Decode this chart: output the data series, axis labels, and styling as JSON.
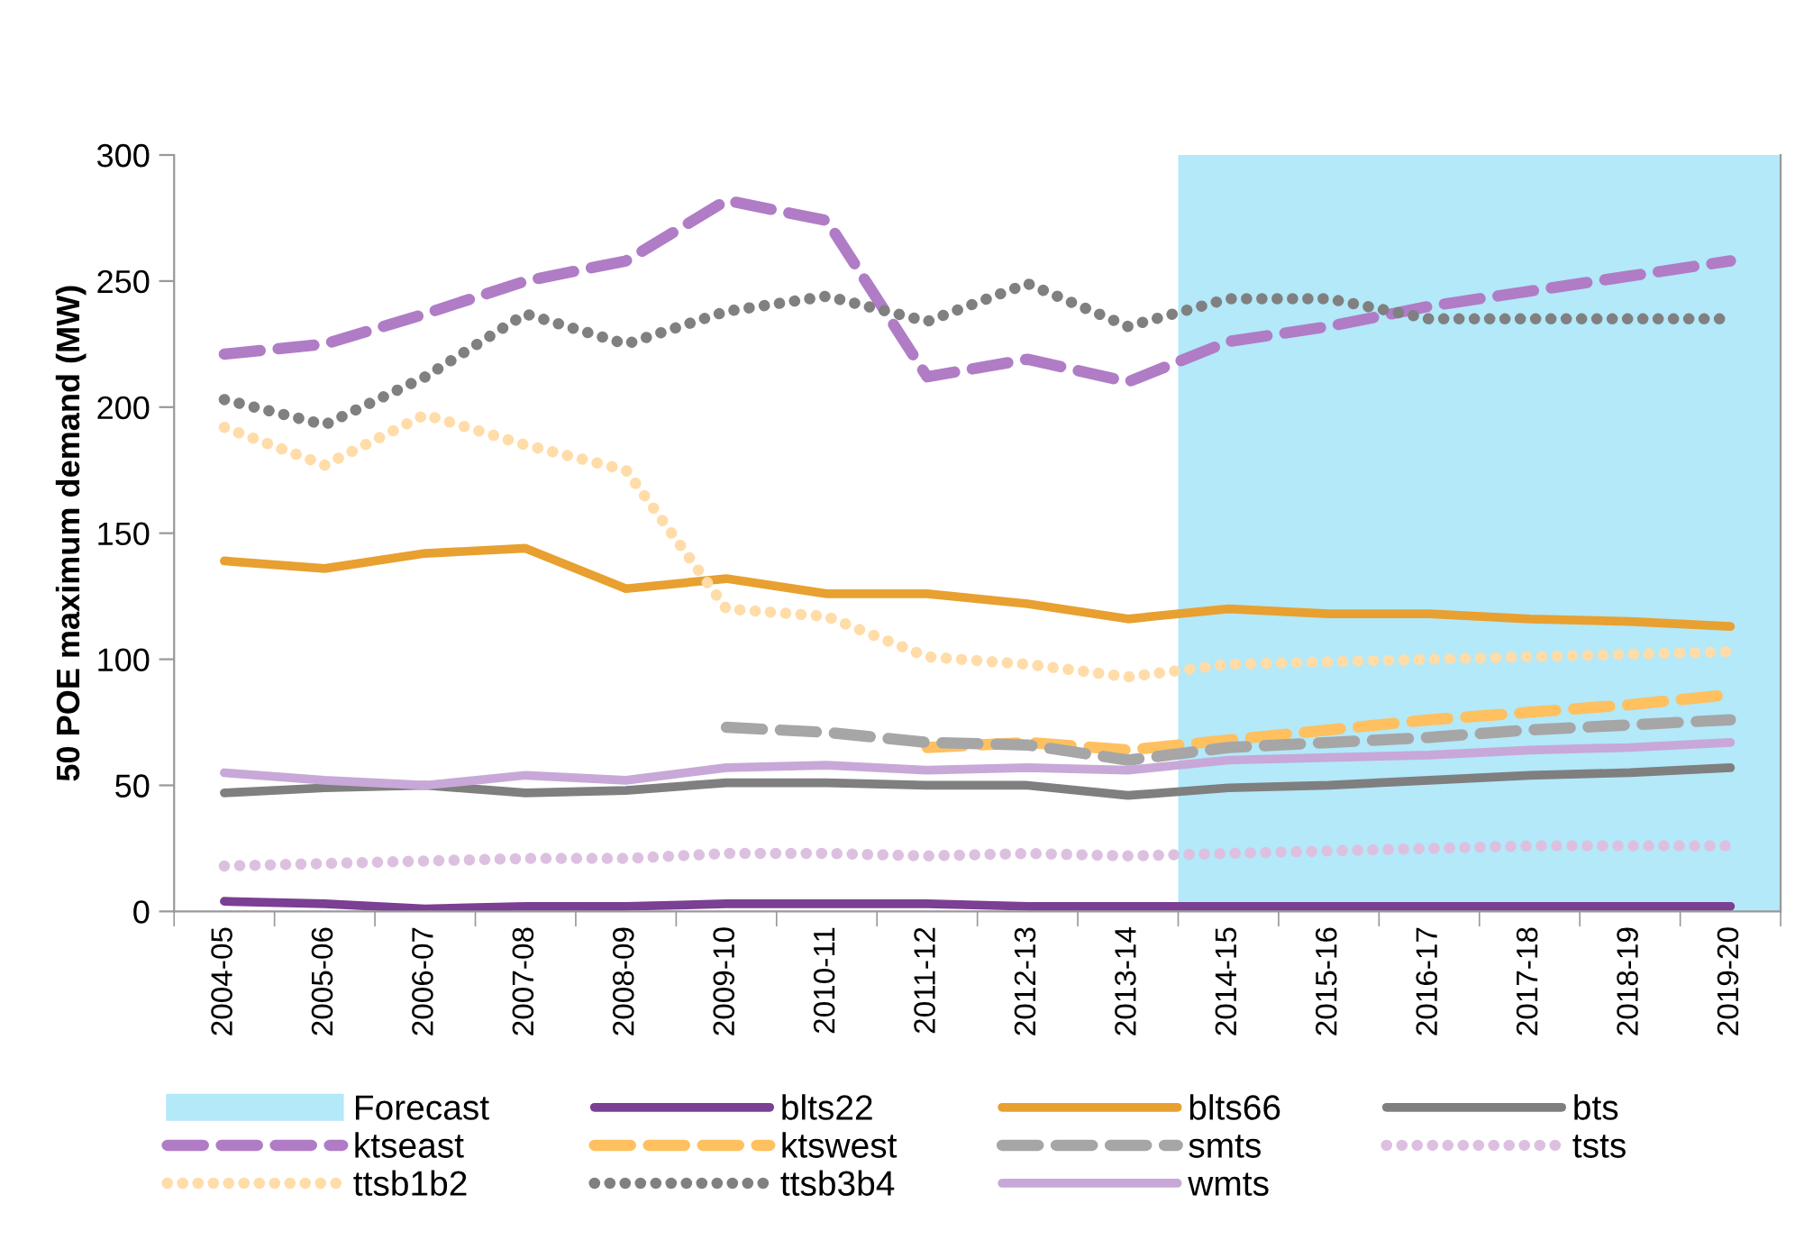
{
  "chart_data": {
    "type": "line",
    "ylabel": "50 POE maximum demand (MW)",
    "categories": [
      "2004-05",
      "2005-06",
      "2006-07",
      "2007-08",
      "2008-09",
      "2009-10",
      "2010-11",
      "2011-12",
      "2012-13",
      "2013-14",
      "2014-15",
      "2015-16",
      "2016-17",
      "2017-18",
      "2018-19",
      "2019-20"
    ],
    "ylim": [
      0,
      300
    ],
    "yticks": [
      0,
      50,
      100,
      150,
      200,
      250,
      300
    ],
    "grid": false,
    "legend": "bottom",
    "marker": "none",
    "bands": [
      {
        "axis": "x",
        "from": "2014-15",
        "to": "2019-20",
        "label": "Forecast",
        "color": "#b3e9f9"
      }
    ],
    "series": [
      {
        "name": "blts22",
        "color": "#7b3f93",
        "line_style": "solid",
        "values": [
          4,
          3,
          1,
          2,
          2,
          3,
          3,
          3,
          2,
          2,
          2,
          2,
          2,
          2,
          2,
          2
        ]
      },
      {
        "name": "blts66",
        "color": "#e8a030",
        "line_style": "solid",
        "values": [
          139,
          136,
          142,
          144,
          128,
          132,
          126,
          126,
          122,
          116,
          120,
          118,
          118,
          116,
          115,
          113
        ]
      },
      {
        "name": "bts",
        "color": "#7f7f7f",
        "line_style": "solid",
        "values": [
          47,
          49,
          50,
          47,
          48,
          51,
          51,
          50,
          50,
          46,
          49,
          50,
          52,
          54,
          55,
          57
        ]
      },
      {
        "name": "ktseast",
        "color": "#b07cc6",
        "line_style": "dashed",
        "values": [
          221,
          225,
          237,
          250,
          258,
          282,
          274,
          212,
          219,
          210,
          226,
          232,
          240,
          246,
          252,
          258
        ]
      },
      {
        "name": "ktswest",
        "color": "#ffc060",
        "line_style": "dashed",
        "values": [
          null,
          null,
          null,
          null,
          null,
          null,
          null,
          65,
          67,
          64,
          68,
          72,
          76,
          79,
          82,
          86
        ]
      },
      {
        "name": "smts",
        "color": "#a6a6a6",
        "line_style": "dashed",
        "values": [
          null,
          null,
          null,
          null,
          null,
          73,
          71,
          67,
          66,
          60,
          65,
          67,
          69,
          72,
          74,
          76
        ]
      },
      {
        "name": "tsts",
        "color": "#ddc0e0",
        "line_style": "dotted",
        "values": [
          18,
          19,
          20,
          21,
          21,
          23,
          23,
          22,
          23,
          22,
          23,
          24,
          25,
          26,
          26,
          26
        ]
      },
      {
        "name": "ttsb1b2",
        "color": "#ffdca8",
        "line_style": "dotted",
        "values": [
          192,
          177,
          197,
          185,
          175,
          120,
          117,
          101,
          98,
          93,
          98,
          99,
          100,
          101,
          102,
          103
        ]
      },
      {
        "name": "ttsb3b4",
        "color": "#808080",
        "line_style": "dotted",
        "values": [
          203,
          193,
          212,
          237,
          225,
          238,
          244,
          234,
          249,
          232,
          243,
          243,
          235,
          235,
          235,
          235
        ]
      },
      {
        "name": "wmts",
        "color": "#c8a8d8",
        "line_style": "solid",
        "values": [
          55,
          52,
          50,
          54,
          52,
          57,
          58,
          56,
          57,
          56,
          60,
          61,
          62,
          64,
          65,
          67
        ]
      }
    ]
  }
}
